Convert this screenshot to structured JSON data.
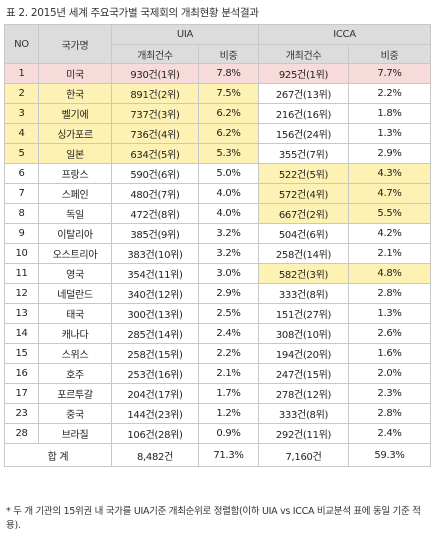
{
  "title": "표 2. 2015년 세계 주요국가별 국제회의 개최현황 분석결과",
  "headers": {
    "no": "NO",
    "country": "국가명",
    "uia": "UIA",
    "icca": "ICCA",
    "count": "개최건수",
    "share": "비중"
  },
  "rows": [
    {
      "no": "1",
      "country": "미국",
      "uia_count": "930건(1위)",
      "uia_share": "7.8%",
      "icca_count": "925건(1위)",
      "icca_share": "7.7%"
    },
    {
      "no": "2",
      "country": "한국",
      "uia_count": "891건(2위)",
      "uia_share": "7.5%",
      "icca_count": "267건(13위)",
      "icca_share": "2.2%"
    },
    {
      "no": "3",
      "country": "벨기에",
      "uia_count": "737건(3위)",
      "uia_share": "6.2%",
      "icca_count": "216건(16위)",
      "icca_share": "1.8%"
    },
    {
      "no": "4",
      "country": "싱가포르",
      "uia_count": "736건(4위)",
      "uia_share": "6.2%",
      "icca_count": "156건(24위)",
      "icca_share": "1.3%"
    },
    {
      "no": "5",
      "country": "일본",
      "uia_count": "634건(5위)",
      "uia_share": "5.3%",
      "icca_count": "355건(7위)",
      "icca_share": "2.9%"
    },
    {
      "no": "6",
      "country": "프랑스",
      "uia_count": "590건(6위)",
      "uia_share": "5.0%",
      "icca_count": "522건(5위)",
      "icca_share": "4.3%"
    },
    {
      "no": "7",
      "country": "스페인",
      "uia_count": "480건(7위)",
      "uia_share": "4.0%",
      "icca_count": "572건(4위)",
      "icca_share": "4.7%"
    },
    {
      "no": "8",
      "country": "독일",
      "uia_count": "472건(8위)",
      "uia_share": "4.0%",
      "icca_count": "667건(2위)",
      "icca_share": "5.5%"
    },
    {
      "no": "9",
      "country": "이탈리아",
      "uia_count": "385건(9위)",
      "uia_share": "3.2%",
      "icca_count": "504건(6위)",
      "icca_share": "4.2%"
    },
    {
      "no": "10",
      "country": "오스트리아",
      "uia_count": "383건(10위)",
      "uia_share": "3.2%",
      "icca_count": "258건(14위)",
      "icca_share": "2.1%"
    },
    {
      "no": "11",
      "country": "영국",
      "uia_count": "354건(11위)",
      "uia_share": "3.0%",
      "icca_count": "582건(3위)",
      "icca_share": "4.8%"
    },
    {
      "no": "12",
      "country": "네덜란드",
      "uia_count": "340건(12위)",
      "uia_share": "2.9%",
      "icca_count": "333건(8위)",
      "icca_share": "2.8%"
    },
    {
      "no": "13",
      "country": "태국",
      "uia_count": "300건(13위)",
      "uia_share": "2.5%",
      "icca_count": "151건(27위)",
      "icca_share": "1.3%"
    },
    {
      "no": "14",
      "country": "캐나다",
      "uia_count": "285건(14위)",
      "uia_share": "2.4%",
      "icca_count": "308건(10위)",
      "icca_share": "2.6%"
    },
    {
      "no": "15",
      "country": "스위스",
      "uia_count": "258건(15위)",
      "uia_share": "2.2%",
      "icca_count": "194건(20위)",
      "icca_share": "1.6%"
    },
    {
      "no": "16",
      "country": "호주",
      "uia_count": "253건(16위)",
      "uia_share": "2.1%",
      "icca_count": "247건(15위)",
      "icca_share": "2.0%"
    },
    {
      "no": "17",
      "country": "포르투갈",
      "uia_count": "204건(17위)",
      "uia_share": "1.7%",
      "icca_count": "278건(12위)",
      "icca_share": "2.3%"
    },
    {
      "no": "23",
      "country": "중국",
      "uia_count": "144건(23위)",
      "uia_share": "1.2%",
      "icca_count": "333건(8위)",
      "icca_share": "2.8%"
    },
    {
      "no": "28",
      "country": "브라질",
      "uia_count": "106건(28위)",
      "uia_share": "0.9%",
      "icca_count": "292건(11위)",
      "icca_share": "2.4%"
    }
  ],
  "total": {
    "label": "합 계",
    "uia_count": "8,482건",
    "uia_share": "71.3%",
    "icca_count": "7,160건",
    "icca_share": "59.3%"
  },
  "footnote": "* 두 개 기관의 15위권 내 국가를 UIA기준 개최순위로 정렬함(이하 UIA vs ICCA 비교분석 표에 동일 기준 적용).",
  "colors": {
    "header_bg": "#dcdcdc",
    "highlight_pink": "#f7dada",
    "highlight_yellow": "#fdf2b3"
  }
}
